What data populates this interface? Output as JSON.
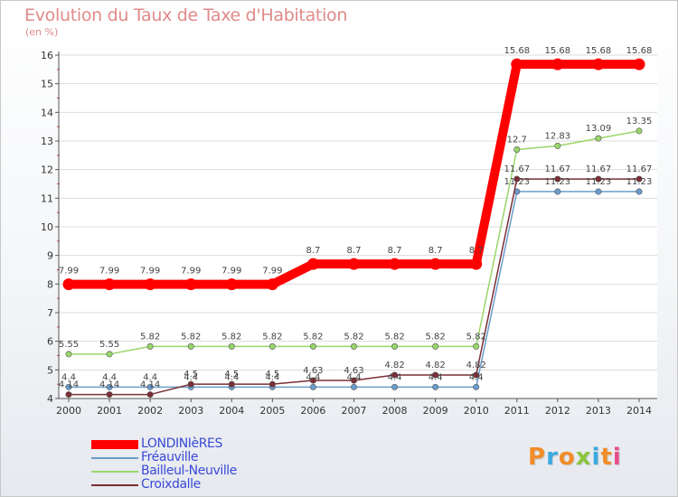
{
  "title": "Evolution du Taux de Taxe d'Habitation",
  "unit_label": "(en %)",
  "logo": {
    "text": "Proxiti",
    "colors": [
      "#f28c28",
      "#3da9e0",
      "#f28c28",
      "#8cc63f",
      "#3da9e0",
      "#f28c28",
      "#e84c8a"
    ]
  },
  "chart_data": {
    "type": "line",
    "title": "Evolution du Taux de Taxe d'Habitation",
    "ylabel": "(en %)",
    "xlabel": "",
    "x": [
      2000,
      2001,
      2002,
      2003,
      2004,
      2005,
      2006,
      2007,
      2008,
      2009,
      2010,
      2011,
      2012,
      2013,
      2014
    ],
    "ylim": [
      4,
      16
    ],
    "yticks": [
      4,
      5,
      6,
      7,
      8,
      9,
      10,
      11,
      12,
      13,
      14,
      15,
      16
    ],
    "grid": "horizontal",
    "legend_position": "bottom-left",
    "series": [
      {
        "name": "LONDINIèRES",
        "color": "#ff0000",
        "values": [
          7.99,
          7.99,
          7.99,
          7.99,
          7.99,
          7.99,
          8.7,
          8.7,
          8.7,
          8.7,
          8.7,
          15.68,
          15.68,
          15.68,
          15.68
        ]
      },
      {
        "name": "Fréauville",
        "color": "#6a9ccc",
        "values": [
          4.4,
          4.4,
          4.4,
          4.4,
          4.4,
          4.4,
          4.4,
          4.4,
          4.4,
          4.4,
          4.4,
          11.23,
          11.23,
          11.23,
          11.23
        ]
      },
      {
        "name": "Bailleul-Neuville",
        "color": "#99d66a",
        "values": [
          5.55,
          5.55,
          5.82,
          5.82,
          5.82,
          5.82,
          5.82,
          5.82,
          5.82,
          5.82,
          5.82,
          12.7,
          12.83,
          13.09,
          13.35
        ]
      },
      {
        "name": "Croixdalle",
        "color": "#7a2e35",
        "values": [
          4.14,
          4.14,
          4.14,
          4.5,
          4.5,
          4.5,
          4.63,
          4.63,
          4.82,
          4.82,
          4.82,
          11.67,
          11.67,
          11.67,
          11.67
        ]
      }
    ]
  }
}
